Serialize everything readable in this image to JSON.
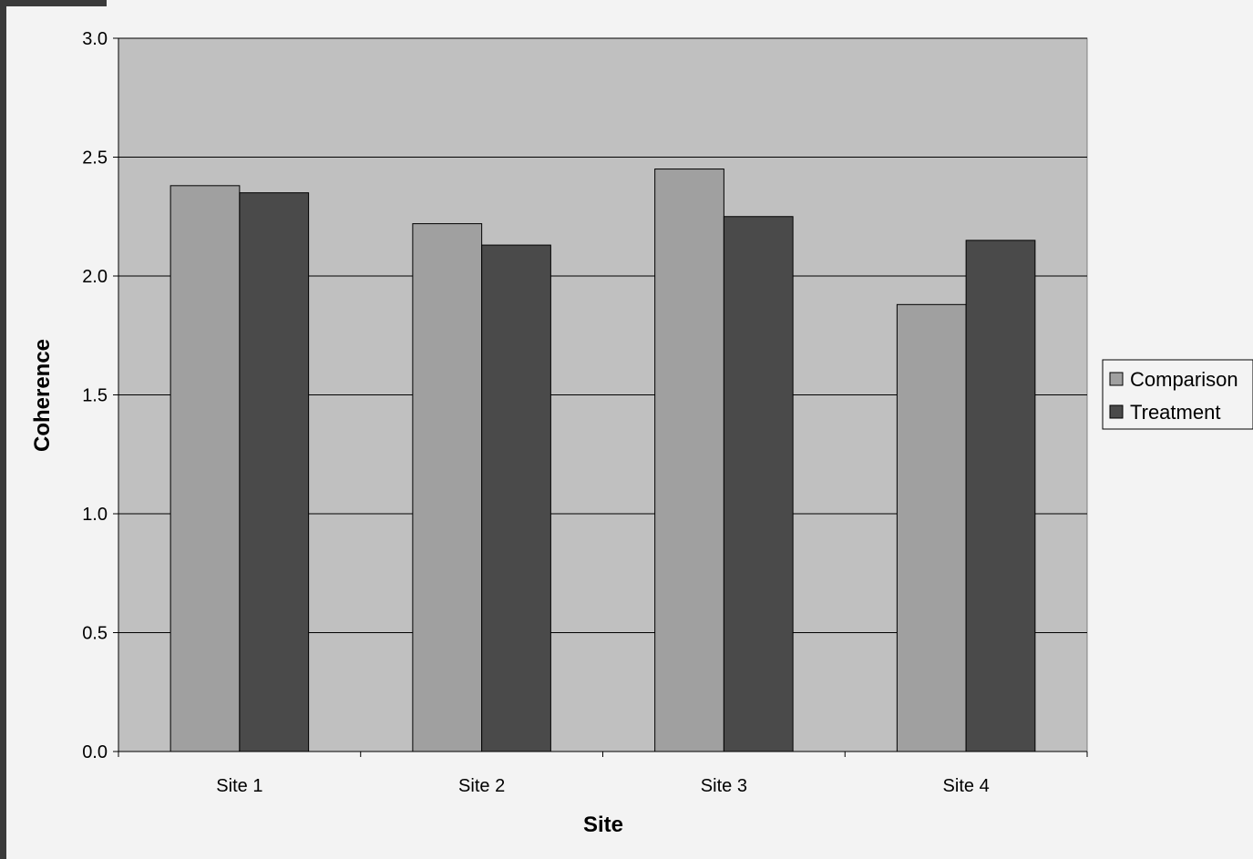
{
  "chart_data": {
    "type": "bar",
    "categories": [
      "Site 1",
      "Site 2",
      "Site 3",
      "Site 4"
    ],
    "series": [
      {
        "name": "Comparison",
        "values": [
          2.38,
          2.22,
          2.45,
          1.88
        ],
        "color": "#a0a0a0"
      },
      {
        "name": "Treatment",
        "values": [
          2.35,
          2.13,
          2.25,
          2.15
        ],
        "color": "#4a4a4a"
      }
    ],
    "title": "",
    "xlabel": "Site",
    "ylabel": "Coherence",
    "ylim": [
      0,
      3.0
    ],
    "yticks": [
      "0.0",
      "0.5",
      "1.0",
      "1.5",
      "2.0",
      "2.5",
      "3.0"
    ],
    "grid": true,
    "legend_position": "right",
    "plot_background": "#c0c0c0",
    "page_background": "#f3f3f3"
  }
}
